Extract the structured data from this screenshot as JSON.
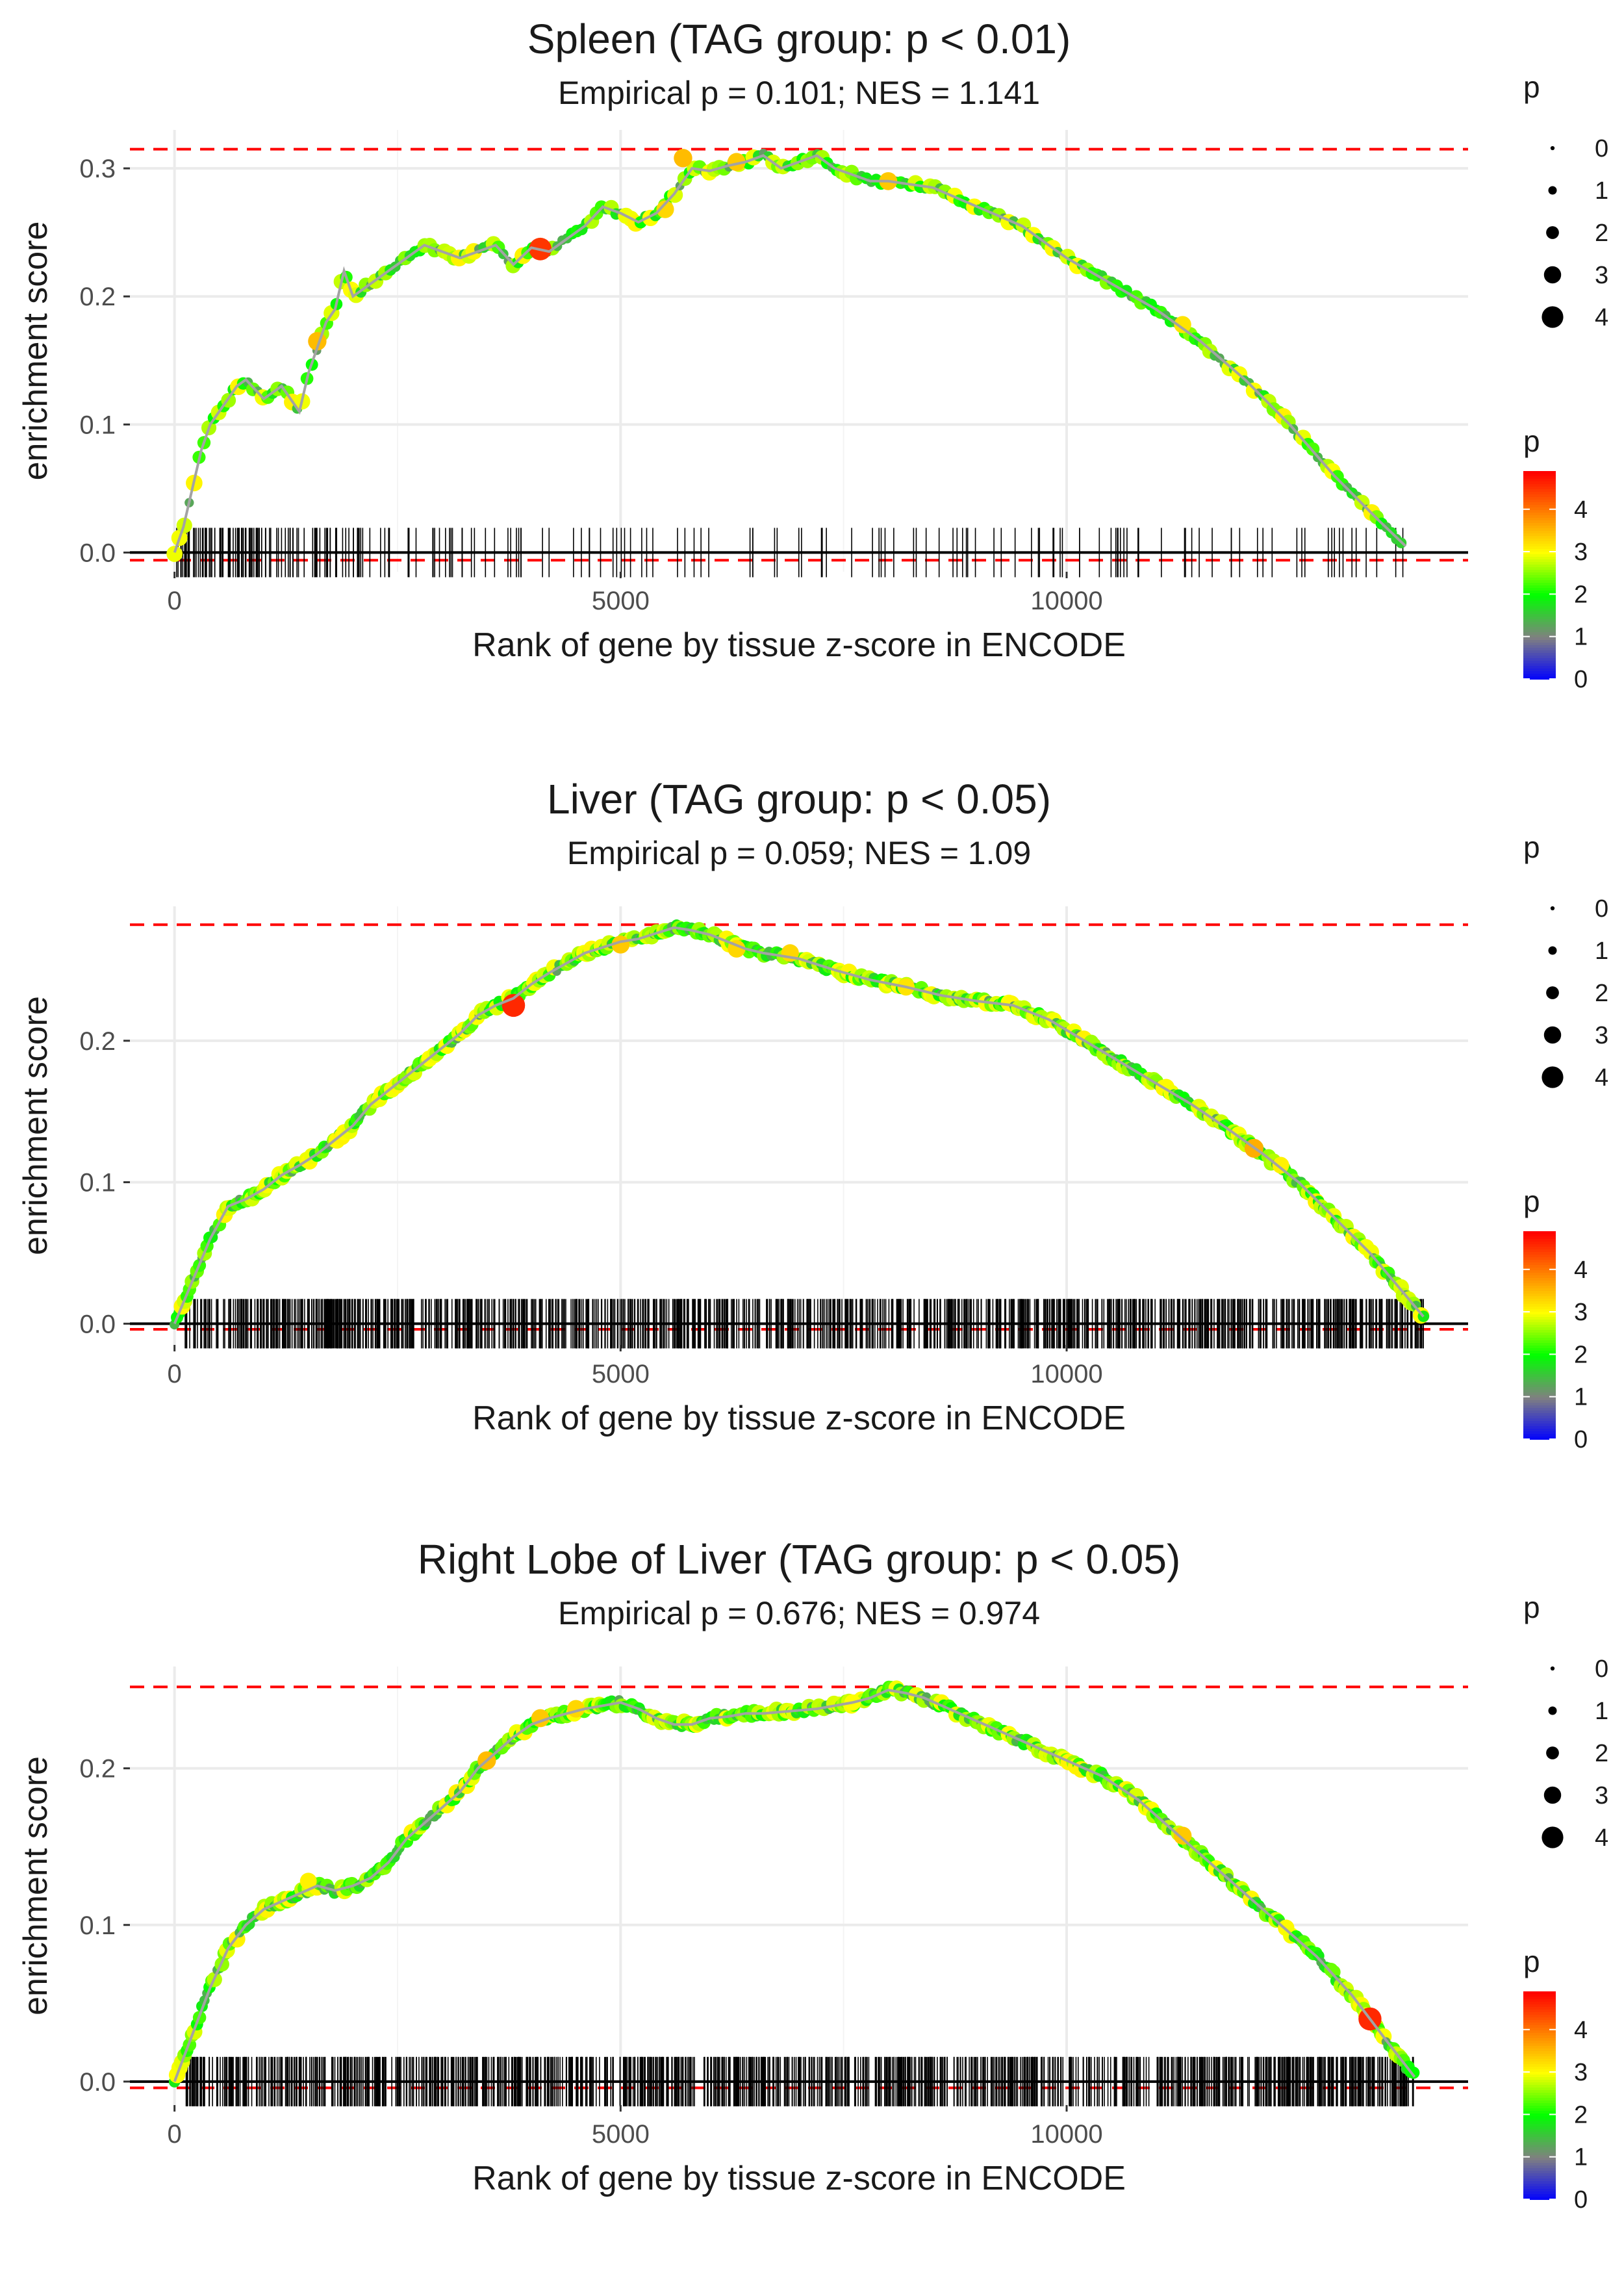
{
  "chart_data": [
    {
      "type": "line",
      "title": "Spleen (TAG group: p < 0.01)",
      "subtitle": "Empirical p = 0.101; NES = 1.141",
      "xlabel": "Rank of gene by tissue z-score in ENCODE",
      "ylabel": "enrichment score",
      "xlim": [
        -500,
        14500
      ],
      "ylim": [
        -0.015,
        0.33
      ],
      "xticks": [
        0,
        5000,
        10000
      ],
      "xtick_labels": [
        "0",
        "5000",
        "10000"
      ],
      "yticks": [
        0,
        0.1,
        0.2,
        0.3
      ],
      "ytick_labels": [
        "0.0",
        "0.1",
        "0.2",
        "0.3"
      ],
      "hlines": [
        0.315,
        -0.006
      ],
      "es_curve": {
        "x": [
          0,
          100,
          200,
          300,
          400,
          500,
          600,
          700,
          800,
          1000,
          1100,
          1200,
          1400,
          1500,
          1600,
          1700,
          1800,
          1900,
          2000,
          2200,
          2400,
          2600,
          2800,
          3000,
          3200,
          3400,
          3600,
          3800,
          4000,
          4200,
          4400,
          4600,
          4800,
          5000,
          5200,
          5400,
          5600,
          5800,
          6000,
          6200,
          6400,
          6600,
          6800,
          7000,
          7200,
          7400,
          7600,
          7800,
          8000,
          8200,
          8500,
          9000,
          9500,
          10000,
          10500,
          11000,
          11500,
          12000,
          12500,
          13000,
          13500,
          13800
        ],
        "y": [
          0.0,
          0.02,
          0.05,
          0.08,
          0.1,
          0.11,
          0.12,
          0.13,
          0.135,
          0.12,
          0.125,
          0.13,
          0.11,
          0.14,
          0.16,
          0.18,
          0.19,
          0.22,
          0.2,
          0.21,
          0.22,
          0.23,
          0.24,
          0.235,
          0.23,
          0.235,
          0.24,
          0.225,
          0.238,
          0.235,
          0.245,
          0.255,
          0.27,
          0.265,
          0.258,
          0.265,
          0.28,
          0.3,
          0.298,
          0.302,
          0.305,
          0.31,
          0.3,
          0.305,
          0.31,
          0.3,
          0.295,
          0.29,
          0.29,
          0.288,
          0.285,
          0.27,
          0.255,
          0.23,
          0.21,
          0.19,
          0.165,
          0.135,
          0.1,
          0.06,
          0.025,
          0.005
        ]
      },
      "peak_rank": 7300,
      "hits_density": "sparse",
      "highlight_points": [
        {
          "x": 4100,
          "y": 0.237,
          "p": 4.5
        },
        {
          "x": 5700,
          "y": 0.308,
          "p": 3.5
        },
        {
          "x": 6300,
          "y": 0.305,
          "p": 3.4
        },
        {
          "x": 8000,
          "y": 0.29,
          "p": 3.4
        },
        {
          "x": 1600,
          "y": 0.165,
          "p": 3.5
        },
        {
          "x": 5500,
          "y": 0.268,
          "p": 3.3
        },
        {
          "x": 11300,
          "y": 0.178,
          "p": 3.2
        }
      ],
      "legend_size": {
        "title": "p",
        "labels": [
          "0",
          "1",
          "2",
          "3",
          "4"
        ]
      },
      "legend_color": {
        "title": "p",
        "labels": [
          "4",
          "3",
          "2",
          "1",
          "0"
        ],
        "min": 0,
        "max": 4.9,
        "colors": [
          "#0000ff",
          "#808080",
          "#00ff00",
          "#ffff00",
          "#ff0000"
        ]
      }
    },
    {
      "type": "line",
      "title": "Liver (TAG group: p < 0.05)",
      "subtitle": "Empirical p = 0.059; NES = 1.09",
      "xlabel": "Rank of gene by tissue z-score in ENCODE",
      "ylabel": "enrichment score",
      "xlim": [
        -500,
        14500
      ],
      "ylim": [
        -0.015,
        0.295
      ],
      "xticks": [
        0,
        5000,
        10000
      ],
      "xtick_labels": [
        "0",
        "5000",
        "10000"
      ],
      "yticks": [
        0,
        0.1,
        0.2
      ],
      "ytick_labels": [
        "0.0",
        "0.1",
        "0.2"
      ],
      "hlines": [
        0.282,
        -0.004
      ],
      "es_curve": {
        "x": [
          0,
          200,
          400,
          600,
          800,
          1000,
          1200,
          1400,
          1600,
          1800,
          2000,
          2200,
          2400,
          2600,
          2800,
          3000,
          3200,
          3400,
          3600,
          3800,
          4000,
          4200,
          4400,
          4600,
          4800,
          5000,
          5200,
          5400,
          5600,
          5800,
          6000,
          6200,
          6400,
          6600,
          6800,
          7000,
          7400,
          7800,
          8200,
          8600,
          9000,
          9400,
          9800,
          10200,
          10600,
          11000,
          11400,
          11800,
          12200,
          12600,
          13000,
          13400,
          13800,
          14000
        ],
        "y": [
          0.0,
          0.03,
          0.06,
          0.083,
          0.088,
          0.095,
          0.105,
          0.112,
          0.12,
          0.13,
          0.14,
          0.155,
          0.165,
          0.175,
          0.185,
          0.195,
          0.205,
          0.218,
          0.225,
          0.23,
          0.24,
          0.248,
          0.255,
          0.262,
          0.266,
          0.27,
          0.272,
          0.276,
          0.28,
          0.278,
          0.275,
          0.27,
          0.265,
          0.262,
          0.26,
          0.258,
          0.25,
          0.243,
          0.238,
          0.232,
          0.228,
          0.225,
          0.215,
          0.2,
          0.185,
          0.17,
          0.155,
          0.138,
          0.12,
          0.1,
          0.075,
          0.05,
          0.02,
          0.005
        ]
      },
      "peak_rank": 5600,
      "hits_density": "dense",
      "highlight_points": [
        {
          "x": 3800,
          "y": 0.225,
          "p": 4.6
        },
        {
          "x": 5000,
          "y": 0.268,
          "p": 3.4
        },
        {
          "x": 6300,
          "y": 0.265,
          "p": 3.3
        },
        {
          "x": 6900,
          "y": 0.262,
          "p": 3.3
        },
        {
          "x": 8200,
          "y": 0.238,
          "p": 3.2
        },
        {
          "x": 12100,
          "y": 0.124,
          "p": 3.6
        },
        {
          "x": 12400,
          "y": 0.112,
          "p": 3.1
        }
      ],
      "legend_size": {
        "title": "p",
        "labels": [
          "0",
          "1",
          "2",
          "3",
          "4"
        ]
      },
      "legend_color": {
        "title": "p",
        "labels": [
          "4",
          "3",
          "2",
          "1",
          "0"
        ],
        "min": 0,
        "max": 4.9,
        "colors": [
          "#0000ff",
          "#808080",
          "#00ff00",
          "#ffff00",
          "#ff0000"
        ]
      }
    },
    {
      "type": "line",
      "title": "Right Lobe of Liver (TAG group: p < 0.05)",
      "subtitle": "Empirical p = 0.676; NES = 0.974",
      "xlabel": "Rank of gene by tissue z-score in ENCODE",
      "ylabel": "enrichment score",
      "xlim": [
        -500,
        14500
      ],
      "ylim": [
        -0.015,
        0.265
      ],
      "xticks": [
        0,
        5000,
        10000
      ],
      "xtick_labels": [
        "0",
        "5000",
        "10000"
      ],
      "yticks": [
        0,
        0.1,
        0.2
      ],
      "ytick_labels": [
        "0.0",
        "0.1",
        "0.2"
      ],
      "hlines": [
        0.252,
        -0.004
      ],
      "es_curve": {
        "x": [
          0,
          200,
          400,
          600,
          800,
          1000,
          1200,
          1400,
          1600,
          1800,
          2000,
          2200,
          2400,
          2600,
          2800,
          3000,
          3200,
          3400,
          3600,
          3800,
          4000,
          4200,
          4400,
          4600,
          4800,
          5000,
          5200,
          5400,
          5600,
          5800,
          6000,
          6200,
          6400,
          6600,
          6800,
          7000,
          7200,
          7400,
          7600,
          7800,
          8000,
          8200,
          8400,
          8800,
          9200,
          9600,
          10000,
          10400,
          10800,
          11200,
          11600,
          12000,
          12400,
          12800,
          13200,
          13600,
          13900
        ],
        "y": [
          0.0,
          0.03,
          0.06,
          0.085,
          0.1,
          0.11,
          0.115,
          0.12,
          0.125,
          0.122,
          0.125,
          0.13,
          0.14,
          0.155,
          0.165,
          0.175,
          0.185,
          0.2,
          0.21,
          0.22,
          0.228,
          0.232,
          0.235,
          0.238,
          0.24,
          0.242,
          0.238,
          0.232,
          0.228,
          0.228,
          0.232,
          0.233,
          0.235,
          0.235,
          0.236,
          0.237,
          0.238,
          0.24,
          0.242,
          0.245,
          0.25,
          0.248,
          0.245,
          0.235,
          0.225,
          0.215,
          0.205,
          0.195,
          0.18,
          0.16,
          0.14,
          0.12,
          0.1,
          0.08,
          0.055,
          0.025,
          0.003
        ]
      },
      "peak_rank": 8100,
      "hits_density": "dense",
      "highlight_points": [
        {
          "x": 13400,
          "y": 0.04,
          "p": 4.6
        },
        {
          "x": 3500,
          "y": 0.205,
          "p": 3.5
        },
        {
          "x": 4100,
          "y": 0.232,
          "p": 3.4
        },
        {
          "x": 4500,
          "y": 0.238,
          "p": 3.3
        },
        {
          "x": 11300,
          "y": 0.157,
          "p": 3.4
        },
        {
          "x": 1500,
          "y": 0.128,
          "p": 3.1
        },
        {
          "x": 7600,
          "y": 0.242,
          "p": 3.0
        }
      ],
      "legend_size": {
        "title": "p",
        "labels": [
          "0",
          "1",
          "2",
          "3",
          "4"
        ]
      },
      "legend_color": {
        "title": "p",
        "labels": [
          "4",
          "3",
          "2",
          "1",
          "0"
        ],
        "min": 0,
        "max": 4.9,
        "colors": [
          "#0000ff",
          "#808080",
          "#00ff00",
          "#ffff00",
          "#ff0000"
        ]
      }
    }
  ]
}
